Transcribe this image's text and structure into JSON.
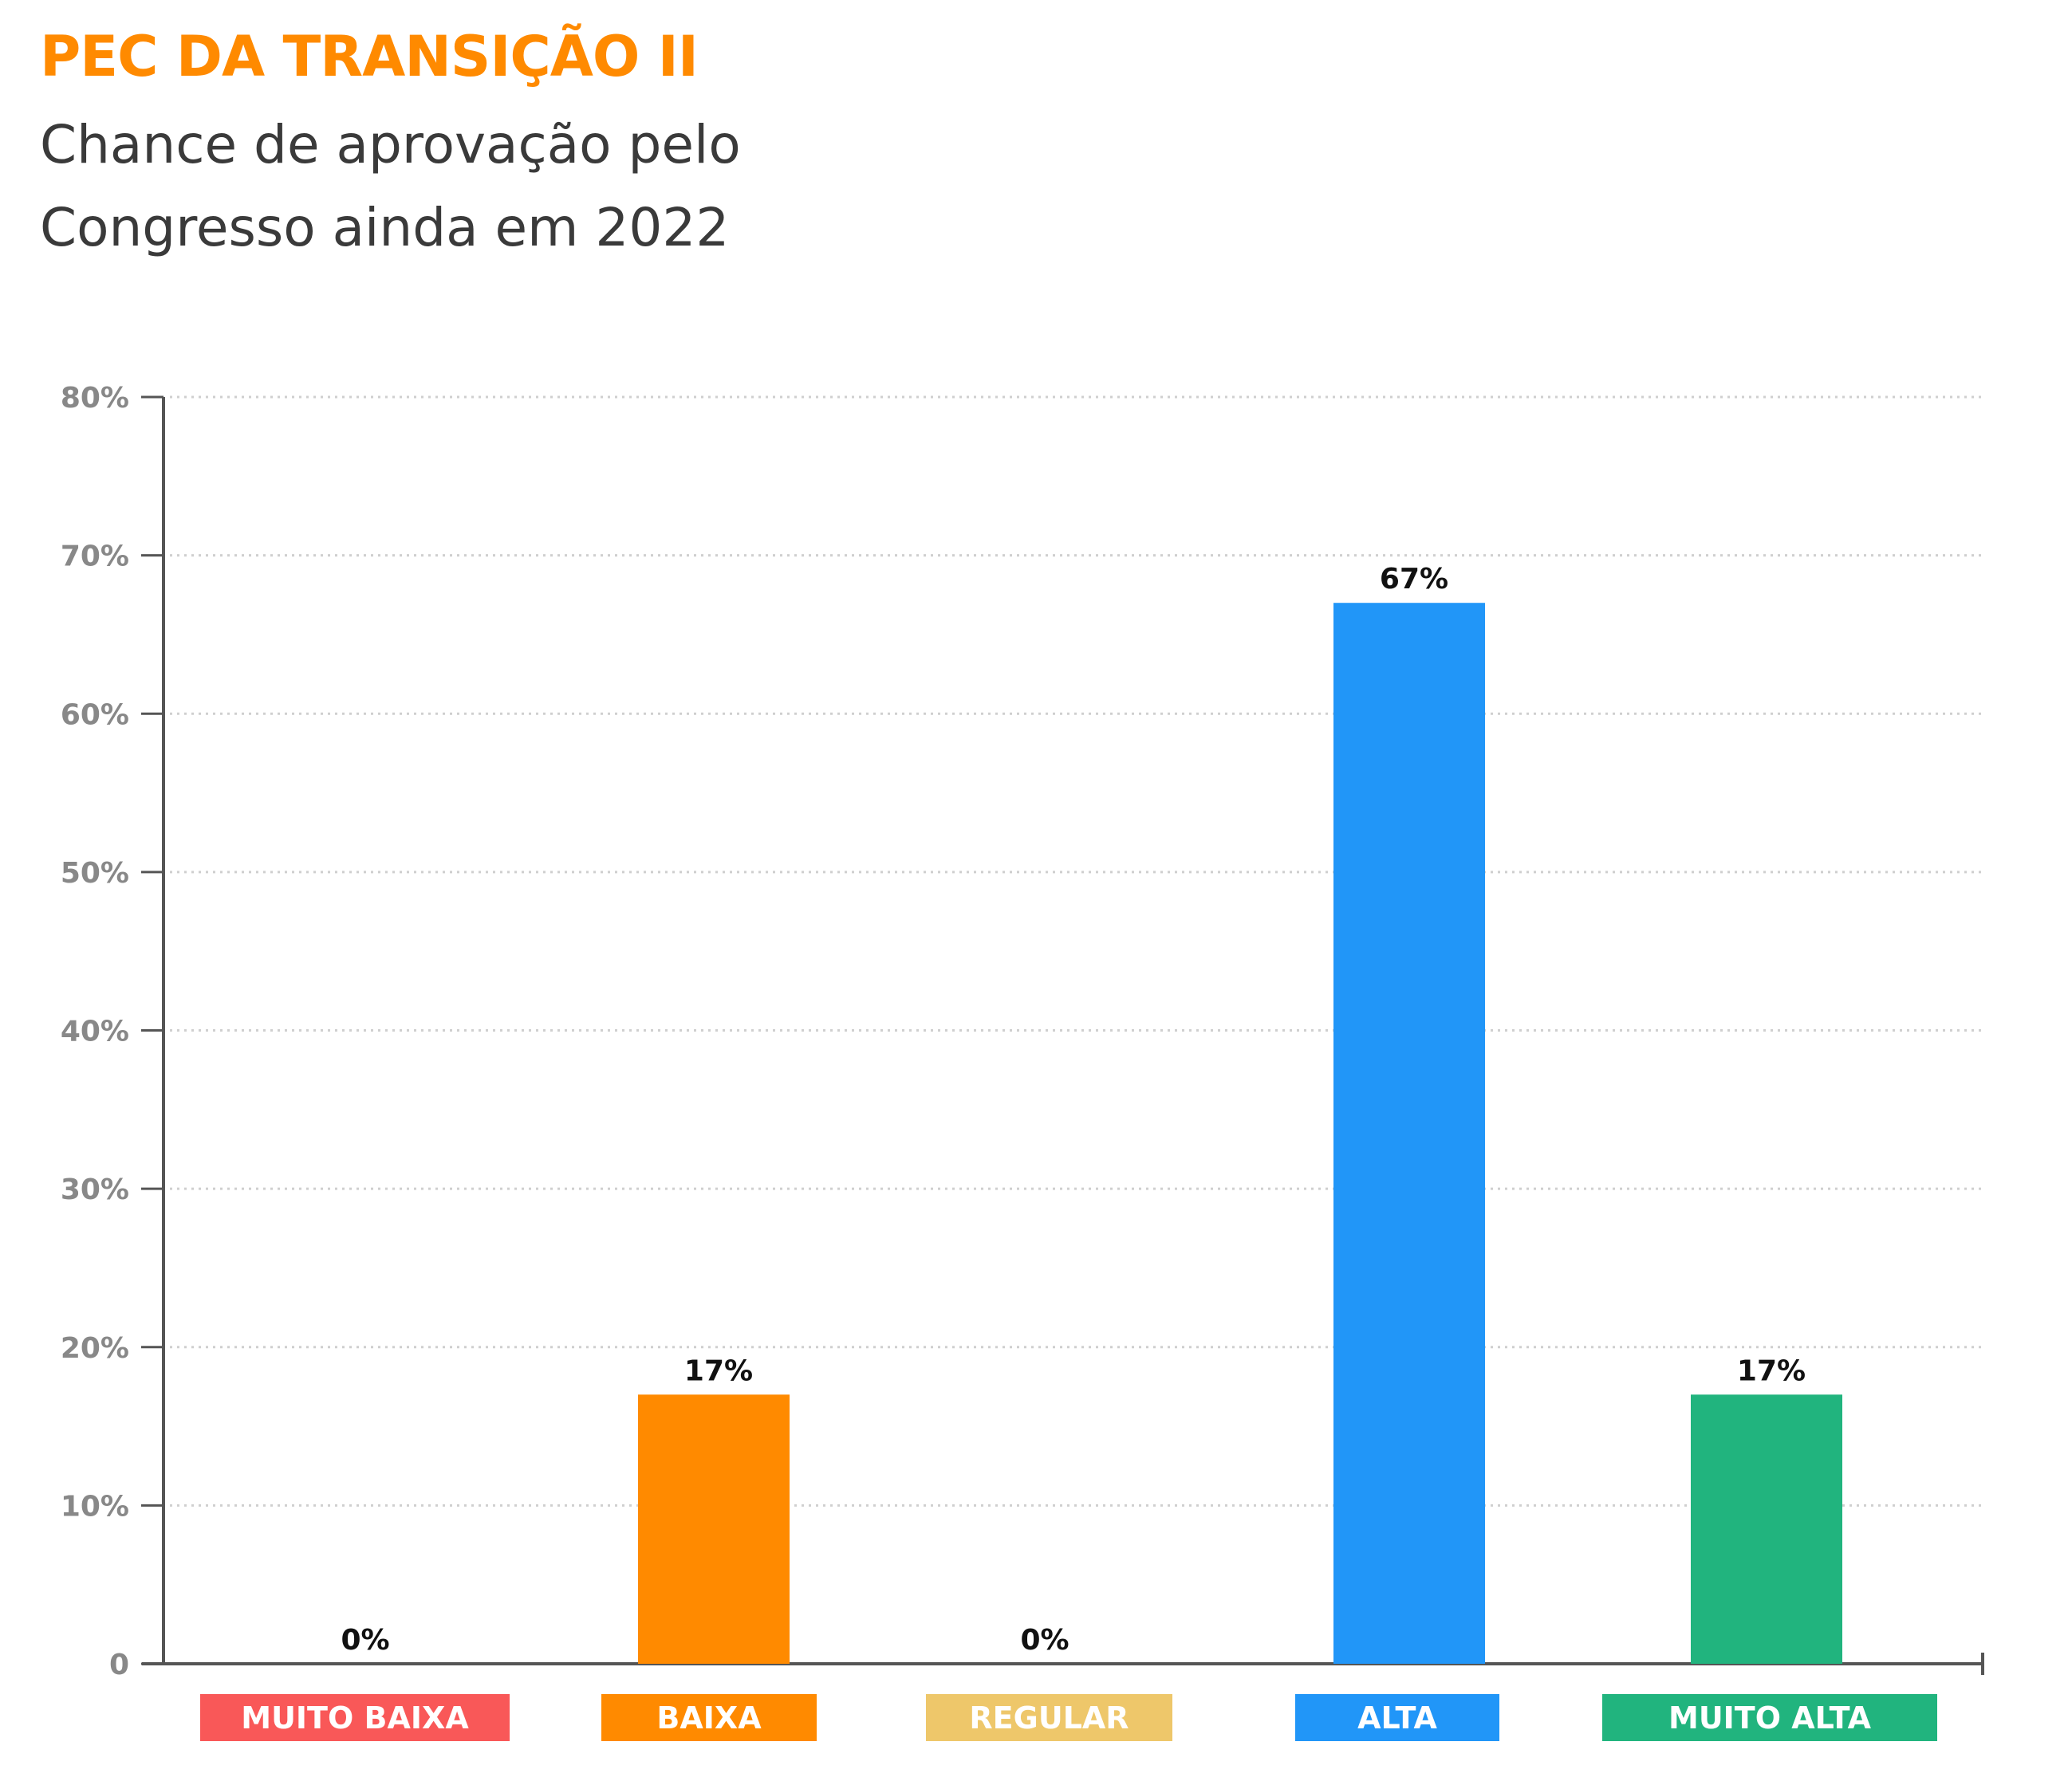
{
  "chart_data": {
    "type": "bar",
    "title": "PEC DA TRANSIÇÃO II",
    "subtitle": "Chance de aprovação pelo Congresso ainda em 2022",
    "categories": [
      "MUITO BAIXA",
      "BAIXA",
      "REGULAR",
      "ALTA",
      "MUITO ALTA"
    ],
    "values": [
      0,
      17,
      0,
      67,
      17
    ],
    "value_labels": [
      "0%",
      "17%",
      "0%",
      "67%",
      "17%"
    ],
    "colors": [
      "#F95858",
      "#FF8A00",
      "#EEC76A",
      "#2196F8",
      "#21B47E"
    ],
    "ylim": [
      0,
      80
    ],
    "yticks": [
      0,
      10,
      20,
      30,
      40,
      50,
      60,
      70,
      80
    ],
    "ytick_labels": [
      "0",
      "10%",
      "20%",
      "30%",
      "40%",
      "50%",
      "60%",
      "70%",
      "80%"
    ],
    "grid": true,
    "xlabel": "",
    "ylabel": ""
  }
}
